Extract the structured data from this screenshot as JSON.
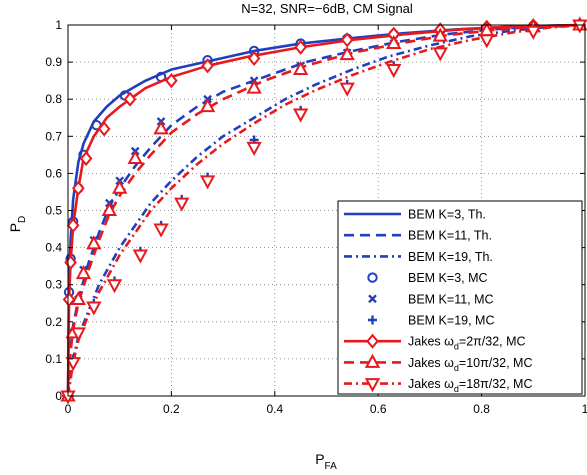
{
  "chart_data": {
    "type": "line",
    "title": "N=32, SNR=−6dB, CM Signal",
    "xlabel": {
      "main": "P",
      "sub": "FA"
    },
    "ylabel": {
      "main": "P",
      "sub": "D"
    },
    "xlim": [
      0,
      1
    ],
    "ylim": [
      0,
      1
    ],
    "xticks": [
      0,
      0.2,
      0.4,
      0.6,
      0.8,
      1
    ],
    "xtick_labels": [
      "0",
      "0.2",
      "0.4",
      "0.6",
      "0.8",
      "1"
    ],
    "yticks": [
      0,
      0.1,
      0.2,
      0.3,
      0.4,
      0.5,
      0.6,
      0.7,
      0.8,
      0.9,
      1
    ],
    "ytick_labels": [
      "0",
      "0.1",
      "0.2",
      "0.3",
      "0.4",
      "0.5",
      "0.6",
      "0.7",
      "0.8",
      "0.9",
      "1"
    ],
    "grid": true,
    "legend_position": "bottom-right",
    "series": [
      {
        "name": "BEM K=3, Th.",
        "color": "#1f3fbf",
        "dash": "solid",
        "marker": "none",
        "x": [
          0,
          0.002,
          0.005,
          0.01,
          0.02,
          0.03,
          0.05,
          0.075,
          0.1,
          0.15,
          0.2,
          0.28,
          0.36,
          0.45,
          0.55,
          0.65,
          0.75,
          0.85,
          0.95,
          1
        ],
        "y": [
          0,
          0.3,
          0.42,
          0.53,
          0.63,
          0.68,
          0.74,
          0.78,
          0.81,
          0.85,
          0.88,
          0.905,
          0.93,
          0.95,
          0.965,
          0.978,
          0.988,
          0.995,
          0.999,
          1
        ]
      },
      {
        "name": "BEM K=11, Th.",
        "color": "#1f3fbf",
        "dash": "dash",
        "marker": "none",
        "x": [
          0,
          0.005,
          0.01,
          0.02,
          0.04,
          0.06,
          0.08,
          0.1,
          0.13,
          0.16,
          0.2,
          0.25,
          0.3,
          0.38,
          0.46,
          0.55,
          0.64,
          0.73,
          0.82,
          0.9,
          1
        ],
        "y": [
          0,
          0.13,
          0.19,
          0.26,
          0.36,
          0.44,
          0.51,
          0.56,
          0.62,
          0.67,
          0.73,
          0.78,
          0.82,
          0.86,
          0.9,
          0.93,
          0.955,
          0.975,
          0.988,
          0.996,
          1
        ]
      },
      {
        "name": "BEM K=19, Th.",
        "color": "#1f3fbf",
        "dash": "dashdot",
        "marker": "none",
        "x": [
          0,
          0.01,
          0.02,
          0.04,
          0.06,
          0.08,
          0.1,
          0.13,
          0.16,
          0.2,
          0.25,
          0.3,
          0.36,
          0.42,
          0.48,
          0.55,
          0.62,
          0.7,
          0.78,
          0.86,
          0.93,
          1
        ],
        "y": [
          0,
          0.1,
          0.16,
          0.23,
          0.3,
          0.35,
          0.4,
          0.46,
          0.52,
          0.58,
          0.645,
          0.7,
          0.75,
          0.8,
          0.84,
          0.88,
          0.915,
          0.945,
          0.97,
          0.985,
          0.995,
          1
        ]
      },
      {
        "name": "BEM K=3, MC",
        "color": "#1f3fbf",
        "dash": "none",
        "marker": "circle",
        "x": [
          0,
          0.002,
          0.005,
          0.01,
          0.02,
          0.03,
          0.055,
          0.11,
          0.18,
          0.27,
          0.36,
          0.45,
          0.54,
          0.63,
          0.72,
          0.81,
          0.9,
          0.99
        ],
        "y": [
          0,
          0.28,
          0.37,
          0.47,
          0.56,
          0.65,
          0.73,
          0.81,
          0.86,
          0.905,
          0.93,
          0.95,
          0.963,
          0.975,
          0.985,
          0.993,
          0.998,
          1
        ]
      },
      {
        "name": "BEM K=11, MC",
        "color": "#1f3fbf",
        "dash": "none",
        "marker": "x",
        "x": [
          0,
          0.01,
          0.02,
          0.03,
          0.05,
          0.08,
          0.1,
          0.13,
          0.18,
          0.27,
          0.36,
          0.45,
          0.54,
          0.63,
          0.72,
          0.81,
          0.9,
          0.99
        ],
        "y": [
          0,
          0.17,
          0.26,
          0.34,
          0.42,
          0.52,
          0.58,
          0.66,
          0.74,
          0.8,
          0.85,
          0.89,
          0.925,
          0.95,
          0.97,
          0.985,
          0.995,
          1
        ]
      },
      {
        "name": "BEM K=19, MC",
        "color": "#1f3fbf",
        "dash": "none",
        "marker": "plus",
        "x": [
          0,
          0.01,
          0.02,
          0.05,
          0.09,
          0.14,
          0.18,
          0.22,
          0.27,
          0.36,
          0.45,
          0.54,
          0.63,
          0.72,
          0.81,
          0.9,
          0.99
        ],
        "y": [
          0,
          0.1,
          0.17,
          0.25,
          0.31,
          0.39,
          0.46,
          0.53,
          0.59,
          0.69,
          0.77,
          0.84,
          0.89,
          0.93,
          0.965,
          0.985,
          1
        ]
      },
      {
        "name": "Jakes ω_d=2π/32, MC",
        "label": {
          "pre": "Jakes ω",
          "sub": "d",
          "post": "=2π/32, MC"
        },
        "color": "#e8191d",
        "dash": "solid",
        "marker": "diamond",
        "x": [
          0,
          0.002,
          0.005,
          0.01,
          0.02,
          0.03,
          0.05,
          0.075,
          0.1,
          0.12,
          0.15,
          0.2,
          0.27,
          0.35,
          0.45,
          0.55,
          0.65,
          0.75,
          0.85,
          0.95,
          1
        ],
        "y": [
          0,
          0.26,
          0.36,
          0.46,
          0.56,
          0.64,
          0.7,
          0.75,
          0.78,
          0.8,
          0.83,
          0.86,
          0.89,
          0.915,
          0.94,
          0.96,
          0.975,
          0.987,
          0.995,
          0.999,
          1
        ],
        "marker_x": [
          0,
          0.002,
          0.005,
          0.01,
          0.02,
          0.035,
          0.07,
          0.12,
          0.2,
          0.27,
          0.36,
          0.45,
          0.54,
          0.63,
          0.72,
          0.81,
          0.9,
          0.99
        ],
        "marker_y": [
          0,
          0.26,
          0.36,
          0.46,
          0.56,
          0.64,
          0.72,
          0.8,
          0.85,
          0.89,
          0.91,
          0.94,
          0.96,
          0.975,
          0.987,
          0.994,
          0.998,
          1
        ]
      },
      {
        "name": "Jakes ω_d=10π/32, MC",
        "label": {
          "pre": "Jakes ω",
          "sub": "d",
          "post": "=10π/32, MC"
        },
        "color": "#e8191d",
        "dash": "dash",
        "marker": "triangle-up",
        "x": [
          0,
          0.005,
          0.01,
          0.02,
          0.04,
          0.06,
          0.08,
          0.1,
          0.13,
          0.16,
          0.2,
          0.25,
          0.3,
          0.38,
          0.46,
          0.55,
          0.64,
          0.73,
          0.82,
          0.9,
          1
        ],
        "y": [
          0,
          0.12,
          0.18,
          0.25,
          0.34,
          0.42,
          0.49,
          0.54,
          0.6,
          0.65,
          0.71,
          0.76,
          0.8,
          0.85,
          0.89,
          0.925,
          0.95,
          0.972,
          0.986,
          0.995,
          1
        ],
        "marker_x": [
          0,
          0.01,
          0.02,
          0.03,
          0.05,
          0.08,
          0.1,
          0.13,
          0.18,
          0.27,
          0.36,
          0.45,
          0.54,
          0.63,
          0.72,
          0.81,
          0.9,
          0.99
        ],
        "marker_y": [
          0,
          0.17,
          0.26,
          0.33,
          0.41,
          0.5,
          0.56,
          0.64,
          0.72,
          0.78,
          0.83,
          0.88,
          0.92,
          0.95,
          0.97,
          0.985,
          0.995,
          1
        ]
      },
      {
        "name": "Jakes ω_d=18π/32, MC",
        "label": {
          "pre": "Jakes ω",
          "sub": "d",
          "post": "=18π/32, MC"
        },
        "color": "#e8191d",
        "dash": "dashdot",
        "marker": "triangle-down",
        "x": [
          0,
          0.01,
          0.02,
          0.04,
          0.06,
          0.08,
          0.1,
          0.13,
          0.16,
          0.2,
          0.25,
          0.3,
          0.36,
          0.42,
          0.48,
          0.55,
          0.62,
          0.7,
          0.78,
          0.86,
          0.93,
          1
        ],
        "y": [
          0,
          0.09,
          0.15,
          0.22,
          0.28,
          0.33,
          0.38,
          0.44,
          0.5,
          0.56,
          0.625,
          0.68,
          0.735,
          0.785,
          0.825,
          0.865,
          0.9,
          0.935,
          0.96,
          0.98,
          0.993,
          1
        ],
        "marker_x": [
          0,
          0.01,
          0.02,
          0.05,
          0.09,
          0.14,
          0.18,
          0.22,
          0.27,
          0.36,
          0.45,
          0.54,
          0.63,
          0.72,
          0.81,
          0.9,
          0.99
        ],
        "marker_y": [
          0,
          0.09,
          0.17,
          0.24,
          0.3,
          0.38,
          0.45,
          0.52,
          0.58,
          0.67,
          0.76,
          0.83,
          0.88,
          0.925,
          0.96,
          0.983,
          1
        ]
      }
    ]
  }
}
